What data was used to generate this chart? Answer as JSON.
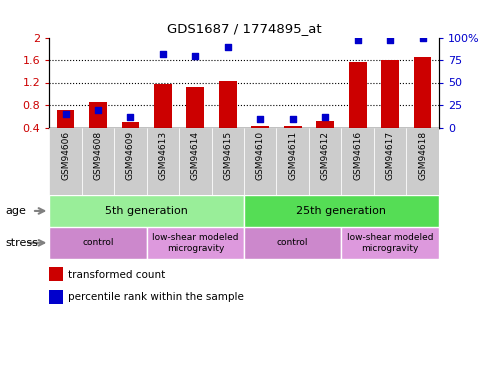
{
  "title": "GDS1687 / 1774895_at",
  "samples": [
    "GSM94606",
    "GSM94608",
    "GSM94609",
    "GSM94613",
    "GSM94614",
    "GSM94615",
    "GSM94610",
    "GSM94611",
    "GSM94612",
    "GSM94616",
    "GSM94617",
    "GSM94618"
  ],
  "red_values": [
    0.72,
    0.86,
    0.5,
    1.18,
    1.12,
    1.22,
    0.42,
    0.42,
    0.52,
    1.57,
    1.6,
    1.65
  ],
  "blue_values": [
    15,
    20,
    12,
    82,
    80,
    90,
    10,
    10,
    12,
    97,
    97,
    100
  ],
  "ylim_left": [
    0.4,
    2.0
  ],
  "ylim_right": [
    0,
    100
  ],
  "yticks_left": [
    0.4,
    0.8,
    1.2,
    1.6,
    2.0
  ],
  "yticks_right": [
    0,
    25,
    50,
    75,
    100
  ],
  "ytick_labels_left": [
    "0.4",
    "0.8",
    "1.2",
    "1.6",
    "2"
  ],
  "ytick_labels_right": [
    "0",
    "25",
    "50",
    "75",
    "100%"
  ],
  "hlines": [
    0.8,
    1.2,
    1.6
  ],
  "red_color": "#cc0000",
  "blue_color": "#0000cc",
  "bar_width": 0.55,
  "age_groups": [
    {
      "text": "5th generation",
      "start": 0,
      "end": 5,
      "color": "#99ee99"
    },
    {
      "text": "25th generation",
      "start": 6,
      "end": 11,
      "color": "#55dd55"
    }
  ],
  "stress_groups": [
    {
      "text": "control",
      "start": 0,
      "end": 2,
      "color": "#cc88cc"
    },
    {
      "text": "low-shear modeled\nmicrogravity",
      "start": 3,
      "end": 5,
      "color": "#dd99dd"
    },
    {
      "text": "control",
      "start": 6,
      "end": 8,
      "color": "#cc88cc"
    },
    {
      "text": "low-shear modeled\nmicrogravity",
      "start": 9,
      "end": 11,
      "color": "#dd99dd"
    }
  ],
  "legend_red": "transformed count",
  "legend_blue": "percentile rank within the sample",
  "background_color": "#ffffff",
  "tick_color_left": "#cc0000",
  "tick_color_right": "#0000cc",
  "xlabel_bg": "#cccccc"
}
